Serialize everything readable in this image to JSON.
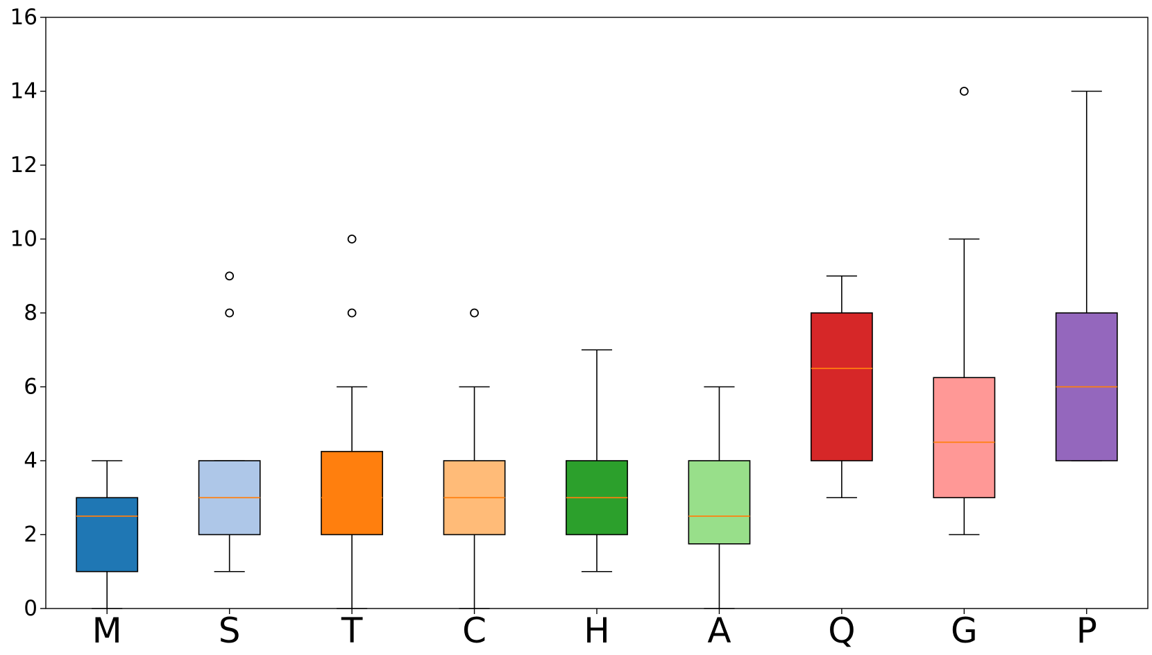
{
  "chart_data": {
    "type": "box",
    "title": "",
    "xlabel": "",
    "ylabel": "",
    "ylim": [
      0,
      16
    ],
    "yticks": [
      0,
      2,
      4,
      6,
      8,
      10,
      12,
      14,
      16
    ],
    "ytick_labels": [
      "0",
      "2",
      "4",
      "6",
      "8",
      "10",
      "12",
      "14",
      "16"
    ],
    "grid": false,
    "legend": "none",
    "categories": [
      "M",
      "S",
      "T",
      "C",
      "H",
      "A",
      "Q",
      "G",
      "P"
    ],
    "boxes": [
      {
        "label": "M",
        "whisker_low": 0,
        "q1": 1,
        "median": 2.5,
        "q3": 3,
        "whisker_high": 4,
        "outliers": [],
        "color": "#1f77b4"
      },
      {
        "label": "S",
        "whisker_low": 1,
        "q1": 2,
        "median": 3,
        "q3": 4,
        "whisker_high": 4,
        "outliers": [
          8,
          9
        ],
        "color": "#aec7e8"
      },
      {
        "label": "T",
        "whisker_low": 0,
        "q1": 2,
        "median": 3,
        "q3": 4.25,
        "whisker_high": 6,
        "outliers": [
          8,
          10
        ],
        "color": "#ff7f0e"
      },
      {
        "label": "C",
        "whisker_low": 0,
        "q1": 2,
        "median": 3,
        "q3": 4,
        "whisker_high": 6,
        "outliers": [
          8
        ],
        "color": "#ffbb78"
      },
      {
        "label": "H",
        "whisker_low": 1,
        "q1": 2,
        "median": 3,
        "q3": 4,
        "whisker_high": 7,
        "outliers": [],
        "color": "#2ca02c"
      },
      {
        "label": "A",
        "whisker_low": 0,
        "q1": 1.75,
        "median": 2.5,
        "q3": 4,
        "whisker_high": 6,
        "outliers": [],
        "color": "#98df8a"
      },
      {
        "label": "Q",
        "whisker_low": 3,
        "q1": 4,
        "median": 6.5,
        "q3": 8,
        "whisker_high": 9,
        "outliers": [],
        "color": "#d62728"
      },
      {
        "label": "G",
        "whisker_low": 2,
        "q1": 3,
        "median": 4.5,
        "q3": 6.25,
        "whisker_high": 10,
        "outliers": [
          14
        ],
        "color": "#ff9896"
      },
      {
        "label": "P",
        "whisker_low": 4,
        "q1": 4,
        "median": 6,
        "q3": 8,
        "whisker_high": 14,
        "outliers": [],
        "color": "#9467bd"
      }
    ],
    "median_color": "#ff7f0e"
  }
}
